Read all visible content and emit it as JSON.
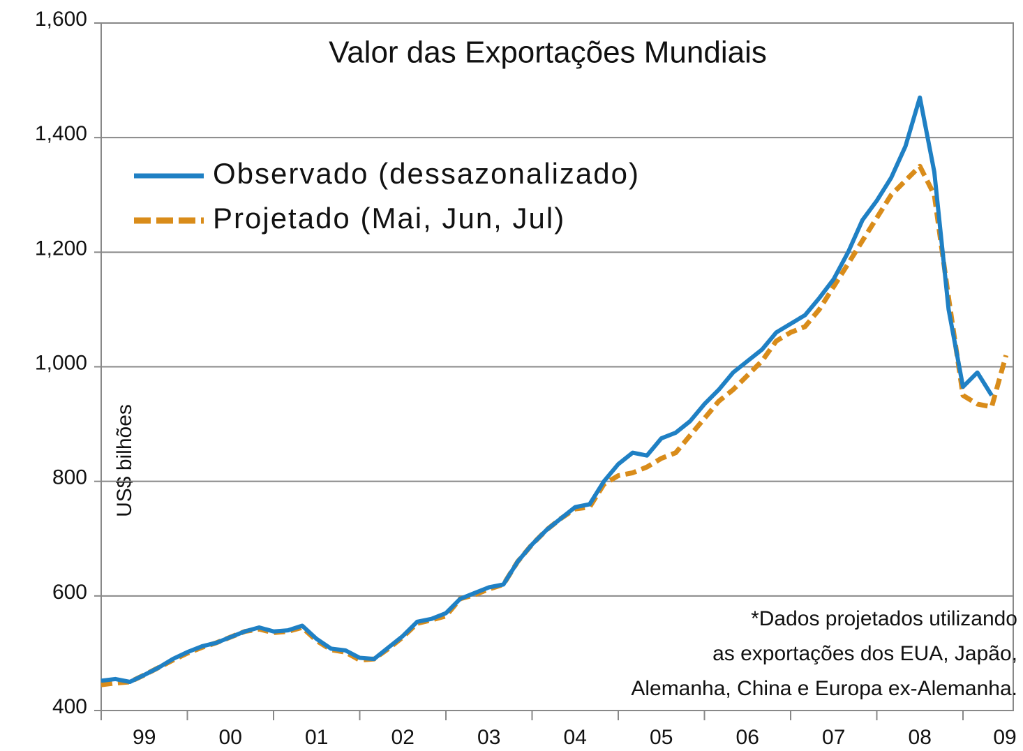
{
  "chart_data": {
    "type": "line",
    "title": "Valor das Exportações Mundiais",
    "ylabel": "US$ bilhões",
    "annotation": [
      "*Dados projetados utilizando",
      "as exportações dos EUA, Japão,",
      "Alemanha, China e Europa ex-Alemanha."
    ],
    "x": [
      1999,
      1999.167,
      1999.333,
      1999.5,
      1999.667,
      1999.833,
      2000,
      2000.167,
      2000.333,
      2000.5,
      2000.667,
      2000.833,
      2001,
      2001.167,
      2001.333,
      2001.5,
      2001.667,
      2001.833,
      2002,
      2002.167,
      2002.333,
      2002.5,
      2002.667,
      2002.833,
      2003,
      2003.167,
      2003.333,
      2003.5,
      2003.667,
      2003.833,
      2004,
      2004.167,
      2004.333,
      2004.5,
      2004.667,
      2004.833,
      2005,
      2005.167,
      2005.333,
      2005.5,
      2005.667,
      2005.833,
      2006,
      2006.167,
      2006.333,
      2006.5,
      2006.667,
      2006.833,
      2007,
      2007.167,
      2007.333,
      2007.5,
      2007.667,
      2007.833,
      2008,
      2008.167,
      2008.333,
      2008.5,
      2008.667,
      2008.833,
      2009,
      2009.167,
      2009.333,
      2009.5
    ],
    "series": [
      {
        "name": "Observado (dessazonalizado)",
        "color": "#1f80c4",
        "dash": false,
        "values": [
          452,
          455,
          450,
          462,
          475,
          490,
          502,
          512,
          518,
          528,
          538,
          545,
          538,
          540,
          548,
          525,
          508,
          505,
          492,
          490,
          510,
          530,
          555,
          560,
          570,
          595,
          605,
          615,
          620,
          660,
          690,
          715,
          735,
          755,
          760,
          800,
          830,
          850,
          845,
          875,
          885,
          905,
          935,
          960,
          990,
          1010,
          1030,
          1060,
          1075,
          1090,
          1120,
          1153,
          1200,
          1256,
          1290,
          1330,
          1385,
          1470,
          1340,
          1100,
          965,
          990,
          950,
          null
        ]
      },
      {
        "name": "Projetado (Mai, Jun, Jul)",
        "color": "#d98c1a",
        "dash": true,
        "values": [
          445,
          448,
          450,
          462,
          475,
          488,
          500,
          510,
          518,
          528,
          538,
          542,
          536,
          538,
          545,
          522,
          506,
          502,
          488,
          490,
          508,
          528,
          552,
          558,
          565,
          595,
          602,
          612,
          620,
          660,
          690,
          715,
          735,
          752,
          755,
          795,
          810,
          815,
          825,
          840,
          850,
          880,
          910,
          940,
          960,
          985,
          1010,
          1045,
          1060,
          1070,
          1100,
          1140,
          1180,
          1220,
          1260,
          1300,
          1325,
          1350,
          1300,
          1120,
          950,
          935,
          930,
          1020
        ]
      }
    ],
    "xlim": [
      1999,
      2009.583
    ],
    "xticks": [
      {
        "value": 1999,
        "label": "99"
      },
      {
        "value": 2000,
        "label": "00"
      },
      {
        "value": 2001,
        "label": "01"
      },
      {
        "value": 2002,
        "label": "02"
      },
      {
        "value": 2003,
        "label": "03"
      },
      {
        "value": 2004,
        "label": "04"
      },
      {
        "value": 2005,
        "label": "05"
      },
      {
        "value": 2006,
        "label": "06"
      },
      {
        "value": 2007,
        "label": "07"
      },
      {
        "value": 2008,
        "label": "08"
      },
      {
        "value": 2009,
        "label": "09"
      }
    ],
    "ylim": [
      400,
      1600
    ],
    "yticks": [
      400,
      {
        "value": 600,
        "label": "600"
      },
      {
        "value": 800,
        "label": "800"
      },
      {
        "value": 1000,
        "label": "1,000"
      },
      {
        "value": 1200,
        "label": "1,200"
      },
      {
        "value": 1400,
        "label": "1,400"
      },
      {
        "value": 1600,
        "label": "1,600"
      }
    ],
    "grid": true,
    "legend": "upper left"
  }
}
